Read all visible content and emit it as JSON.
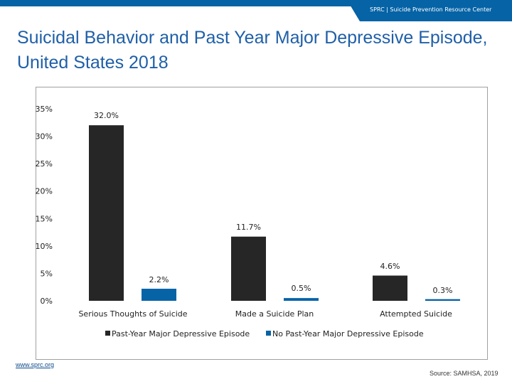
{
  "header": {
    "org_label": "SPRC  |  Suicide Prevention Resource Center"
  },
  "title": "Suicidal Behavior and Past Year Major Depressive Episode, United States 2018",
  "footer": {
    "url": "www.sprc.org",
    "source": "Source: SAMHSA, 2019"
  },
  "chart_data": {
    "type": "bar",
    "categories": [
      "Serious Thoughts of Suicide",
      "Made a Suicide Plan",
      "Attempted Suicide"
    ],
    "series": [
      {
        "name": "Past-Year Major Depressive Episode",
        "values": [
          32.0,
          11.7,
          4.6
        ],
        "labels": [
          "32.0%",
          "11.7%",
          "4.6%"
        ],
        "color": "#262626"
      },
      {
        "name": "No Past-Year Major Depressive Episode",
        "values": [
          2.2,
          0.5,
          0.3
        ],
        "labels": [
          "2.2%",
          "0.5%",
          "0.3%"
        ],
        "color": "#0563a6"
      }
    ],
    "yticks": [
      "0%",
      "5%",
      "10%",
      "15%",
      "20%",
      "25%",
      "30%",
      "35%"
    ],
    "ylim": [
      0,
      35
    ],
    "grid": false,
    "legend": "bottom"
  }
}
